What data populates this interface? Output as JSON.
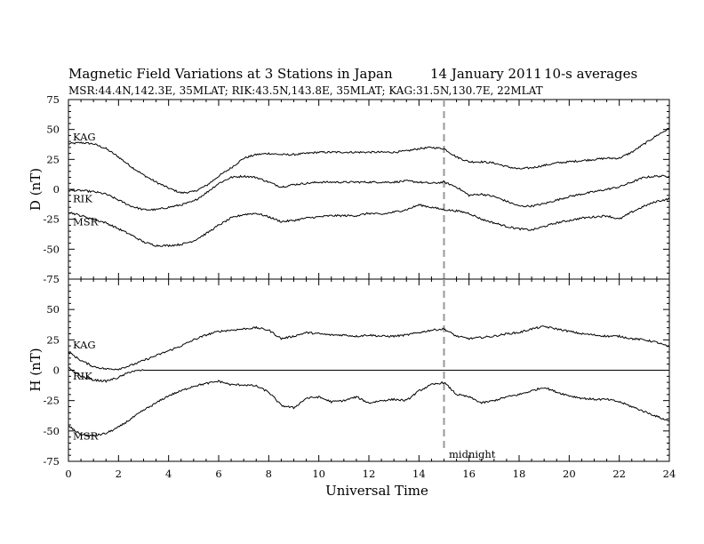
{
  "figure": {
    "title": "Magnetic Field Variations at 3 Stations in Japan",
    "date": "14 January 2011",
    "averaging": "10-s averages",
    "subtitle": "MSR:44.4N,142.3E, 35MLAT;  RIK:43.5N,143.8E, 35MLAT;  KAG:31.5N,130.7E, 22MLAT",
    "xlabel": "Universal Time",
    "midnight_label": "midnight"
  },
  "chart_data": [
    {
      "type": "line",
      "panel": "top",
      "ylabel": "D (nT)",
      "ylim": [
        -75,
        75
      ],
      "xlim": [
        0,
        24
      ],
      "yticks": [
        75,
        50,
        25,
        0,
        -25,
        -50,
        -75
      ],
      "xticks": [
        0,
        2,
        4,
        6,
        8,
        10,
        12,
        14,
        16,
        18,
        20,
        22,
        24
      ],
      "midnight_ut": 15,
      "series": [
        {
          "name": "KAG",
          "x": [
            0,
            0.5,
            1,
            1.5,
            2,
            2.5,
            3,
            3.5,
            4,
            4.5,
            5,
            5.5,
            6,
            6.5,
            7,
            7.5,
            8,
            8.5,
            9,
            9.5,
            10,
            10.5,
            11,
            11.5,
            12,
            12.5,
            13,
            13.5,
            14,
            14.5,
            15,
            15.5,
            16,
            16.5,
            17,
            17.5,
            18,
            18.5,
            19,
            19.5,
            20,
            20.5,
            21,
            21.5,
            22,
            22.5,
            23,
            23.5,
            24
          ],
          "values": [
            38,
            39,
            38,
            34,
            27,
            19,
            12,
            6,
            1,
            -3,
            -2,
            3,
            11,
            18,
            26,
            29,
            30,
            29,
            29,
            30,
            31,
            31,
            31,
            31,
            31,
            31,
            31,
            32,
            34,
            35,
            34,
            27,
            23,
            23,
            22,
            19,
            17,
            18,
            20,
            22,
            23,
            24,
            25,
            26,
            26,
            31,
            38,
            45,
            51
          ]
        },
        {
          "name": "RIK",
          "x": [
            0,
            0.5,
            1,
            1.5,
            2,
            2.5,
            3,
            3.5,
            4,
            4.5,
            5,
            5.5,
            6,
            6.5,
            7,
            7.5,
            8,
            8.5,
            9,
            9.5,
            10,
            10.5,
            11,
            11.5,
            12,
            12.5,
            13,
            13.5,
            14,
            14.5,
            15,
            15.5,
            16,
            16.5,
            17,
            17.5,
            18,
            18.5,
            19,
            19.5,
            20,
            20.5,
            21,
            21.5,
            22,
            22.5,
            23,
            23.5,
            24
          ],
          "values": [
            -1,
            -1,
            -2,
            -4,
            -9,
            -14,
            -17,
            -17,
            -15,
            -13,
            -10,
            -3,
            5,
            10,
            11,
            10,
            6,
            2,
            4,
            5,
            6,
            6,
            6,
            6,
            6,
            6,
            6,
            7,
            6,
            5,
            6,
            2,
            -5,
            -4,
            -6,
            -10,
            -14,
            -14,
            -12,
            -9,
            -6,
            -4,
            -2,
            0,
            2,
            6,
            10,
            11,
            11
          ]
        },
        {
          "name": "MSR",
          "x": [
            0,
            0.5,
            1,
            1.5,
            2,
            2.5,
            3,
            3.5,
            4,
            4.5,
            5,
            5.5,
            6,
            6.5,
            7,
            7.5,
            8,
            8.5,
            9,
            9.5,
            10,
            10.5,
            11,
            11.5,
            12,
            12.5,
            13,
            13.5,
            14,
            14.5,
            15,
            15.5,
            16,
            16.5,
            17,
            17.5,
            18,
            18.5,
            19,
            19.5,
            20,
            20.5,
            21,
            21.5,
            22,
            22.5,
            23,
            23.5,
            24
          ],
          "values": [
            -19,
            -22,
            -25,
            -28,
            -33,
            -38,
            -44,
            -47,
            -47,
            -46,
            -43,
            -37,
            -30,
            -24,
            -21,
            -20,
            -23,
            -27,
            -26,
            -24,
            -23,
            -22,
            -22,
            -22,
            -20,
            -21,
            -19,
            -17,
            -13,
            -15,
            -17,
            -18,
            -20,
            -25,
            -28,
            -31,
            -33,
            -34,
            -31,
            -28,
            -26,
            -24,
            -23,
            -22,
            -25,
            -19,
            -14,
            -10,
            -8
          ]
        }
      ]
    },
    {
      "type": "line",
      "panel": "bottom",
      "ylabel": "H (nT)",
      "ylim": [
        -75,
        75
      ],
      "xlim": [
        0,
        24
      ],
      "yticks": [
        50,
        25,
        0,
        -25,
        -50,
        -75
      ],
      "xticks": [
        0,
        2,
        4,
        6,
        8,
        10,
        12,
        14,
        16,
        18,
        20,
        22,
        24
      ],
      "midnight_ut": 15,
      "series": [
        {
          "name": "KAG",
          "x": [
            0,
            0.5,
            1,
            1.5,
            2,
            2.5,
            3,
            3.5,
            4,
            4.5,
            5,
            5.5,
            6,
            6.5,
            7,
            7.5,
            8,
            8.5,
            9,
            9.5,
            10,
            10.5,
            11,
            11.5,
            12,
            12.5,
            13,
            13.5,
            14,
            14.5,
            15,
            15.5,
            16,
            16.5,
            17,
            17.5,
            18,
            18.5,
            19,
            19.5,
            20,
            20.5,
            21,
            21.5,
            22,
            22.5,
            23,
            23.5,
            24
          ],
          "values": [
            15,
            8,
            3,
            1,
            1,
            4,
            8,
            12,
            16,
            20,
            25,
            29,
            32,
            33,
            34,
            35,
            33,
            26,
            28,
            31,
            30,
            29,
            29,
            28,
            29,
            28,
            28,
            29,
            31,
            33,
            34,
            28,
            26,
            27,
            28,
            30,
            31,
            34,
            36,
            34,
            32,
            30,
            29,
            28,
            28,
            26,
            25,
            23,
            19
          ]
        },
        {
          "name": "RIK",
          "x": [
            0,
            0.5,
            1,
            1.5,
            2,
            2.5,
            3,
            3.5,
            4,
            4.5,
            5,
            5.5,
            6,
            6.5,
            7,
            7.5,
            8,
            8.5,
            9,
            9.5,
            10,
            10.5,
            11,
            11.5,
            12,
            12.5,
            13,
            13.5,
            14,
            14.5,
            15,
            15.5,
            16,
            16.5,
            17,
            17.5,
            18,
            18.5,
            19,
            19.5,
            20,
            20.5,
            21,
            21.5,
            22,
            22.5,
            23,
            23.5,
            24
          ],
          "values": [
            2,
            -5,
            -8,
            -9,
            -6,
            -1,
            0,
            0,
            0,
            0,
            0,
            0,
            0,
            0,
            0,
            0,
            0,
            0,
            0,
            0,
            0,
            0,
            0,
            0,
            0,
            0,
            0,
            0,
            0,
            0,
            0,
            0,
            0,
            0,
            0,
            0,
            0,
            0,
            0,
            0,
            0,
            0,
            0,
            0,
            0,
            0,
            0,
            0,
            0
          ]
        },
        {
          "name": "MSR",
          "x": [
            0,
            0.5,
            1,
            1.5,
            2,
            2.5,
            3,
            3.5,
            4,
            4.5,
            5,
            5.5,
            6,
            6.5,
            7,
            7.5,
            8,
            8.5,
            9,
            9.5,
            10,
            10.5,
            11,
            11.5,
            12,
            12.5,
            13,
            13.5,
            14,
            14.5,
            15,
            15.5,
            16,
            16.5,
            17,
            17.5,
            18,
            18.5,
            19,
            19.5,
            20,
            20.5,
            21,
            21.5,
            22,
            22.5,
            23,
            23.5,
            24
          ],
          "values": [
            -46,
            -53,
            -54,
            -52,
            -47,
            -40,
            -33,
            -27,
            -21,
            -17,
            -13,
            -11,
            -9,
            -12,
            -12,
            -13,
            -18,
            -29,
            -31,
            -23,
            -22,
            -26,
            -25,
            -22,
            -27,
            -25,
            -24,
            -25,
            -17,
            -12,
            -10,
            -20,
            -22,
            -27,
            -25,
            -22,
            -20,
            -17,
            -14,
            -18,
            -21,
            -23,
            -24,
            -24,
            -26,
            -30,
            -34,
            -38,
            -42
          ]
        }
      ]
    }
  ]
}
